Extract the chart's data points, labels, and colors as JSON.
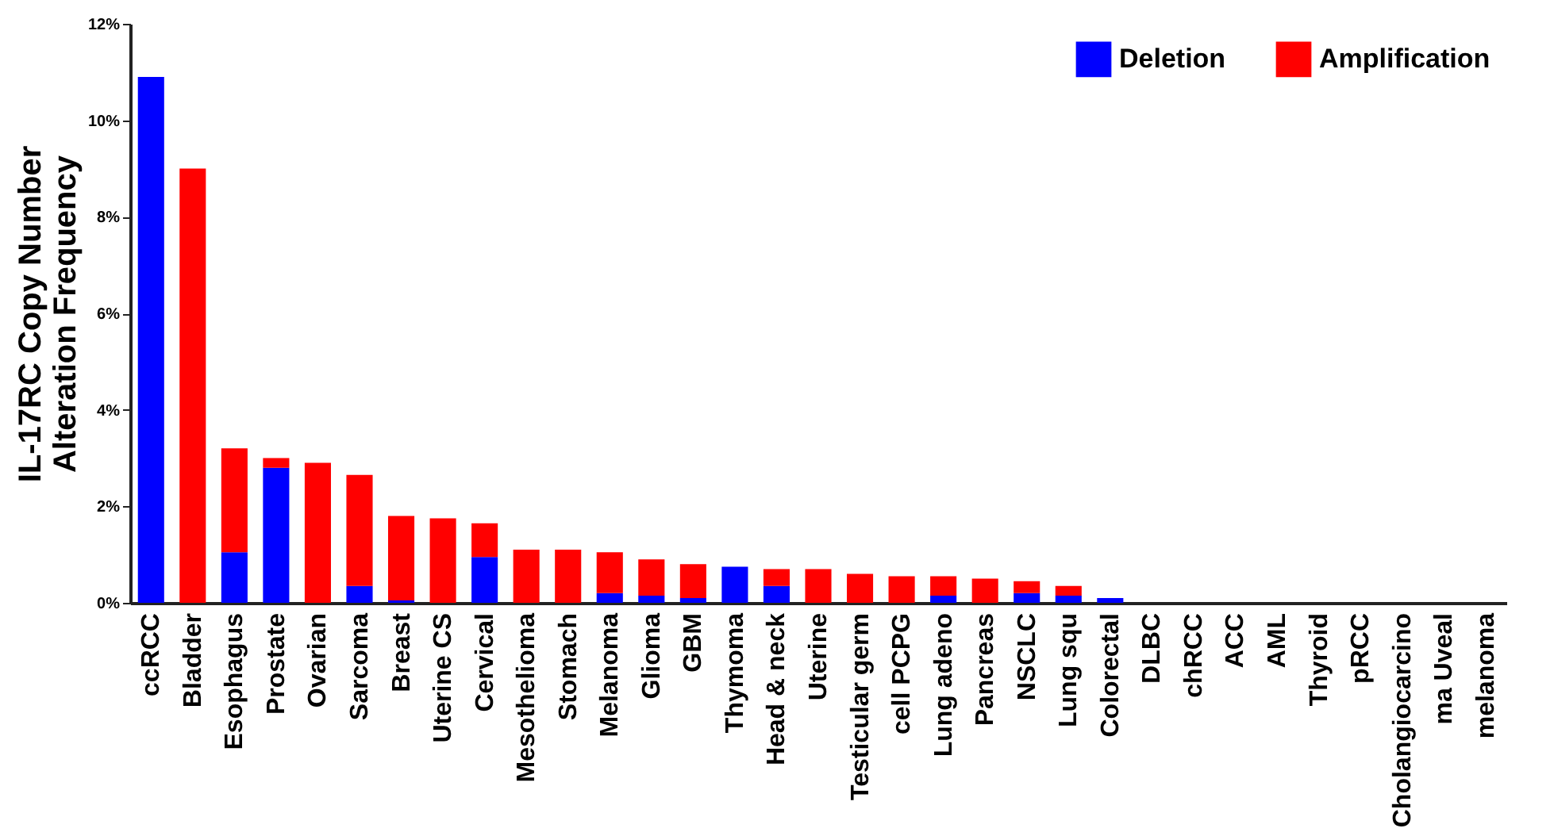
{
  "chart_data": {
    "type": "bar",
    "stacked": true,
    "ylabel": "IL-17RC Copy Number\nAlteration Frequency",
    "categories": [
      "ccRCC",
      "Bladder",
      "Esophagus",
      "Prostate",
      "Ovarian",
      "Sarcoma",
      "Breast",
      "Uterine CS",
      "Cervical",
      "Mesothelioma",
      "Stomach",
      "Melanoma",
      "Glioma",
      "GBM",
      "Thymoma",
      "Head & neck",
      "Uterine",
      "Testicular germ",
      "cell PCPG",
      "Lung adeno",
      "Pancreas",
      "NSCLC",
      "Lung squ",
      "Colorectal",
      "DLBC",
      "chRCC",
      "ACC",
      "AML",
      "Thyroid",
      "pRCC",
      "Cholangiocarcino",
      "ma Uveal",
      "melanoma"
    ],
    "series": [
      {
        "name": "Deletion",
        "color": "#0000ff",
        "values": [
          10.9,
          0,
          1.05,
          2.8,
          0,
          0.35,
          0.05,
          0,
          0.95,
          0,
          0,
          0.2,
          0.15,
          0.1,
          0.75,
          0.35,
          0,
          0,
          0,
          0.15,
          0,
          0.2,
          0.15,
          0.1,
          0,
          0,
          0,
          0,
          0,
          0,
          0,
          0,
          0
        ]
      },
      {
        "name": "Amplification",
        "color": "#ff0000",
        "values": [
          0,
          9.0,
          2.15,
          0.2,
          2.9,
          2.3,
          1.75,
          1.75,
          0.7,
          1.1,
          1.1,
          0.85,
          0.75,
          0.7,
          0,
          0.35,
          0.7,
          0.6,
          0.55,
          0.4,
          0.5,
          0.25,
          0.2,
          0,
          0,
          0,
          0,
          0,
          0,
          0,
          0,
          0,
          0
        ]
      }
    ],
    "ylim": [
      0,
      12
    ],
    "yticks": [
      {
        "value": 0,
        "label": "0%"
      },
      {
        "value": 2,
        "label": "2%"
      },
      {
        "value": 4,
        "label": "4%"
      },
      {
        "value": 6,
        "label": "6%"
      },
      {
        "value": 8,
        "label": "8%"
      },
      {
        "value": 10,
        "label": "10%"
      },
      {
        "value": 12,
        "label": "12%"
      }
    ],
    "grid": false,
    "legend": "top right"
  }
}
